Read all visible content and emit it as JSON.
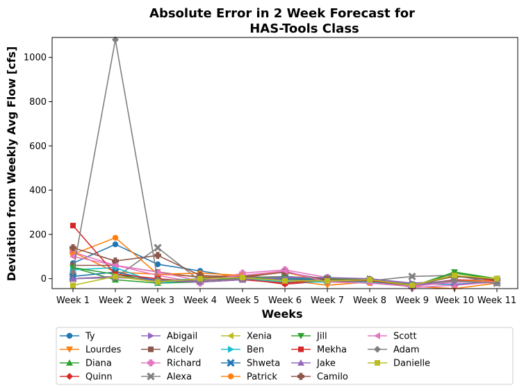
{
  "chart_data": {
    "type": "line",
    "title_lines": [
      "Absolute Error in 2 Week Forecast for",
      "HAS-Tools Class"
    ],
    "xlabel": "Weeks",
    "ylabel": "Deviation from Weekly Avg Flow [cfs]",
    "categories": [
      "Week 1",
      "Week 2",
      "Week 3",
      "Week 4",
      "Week 5",
      "Week 6",
      "Week 7",
      "Week 8",
      "Week 9",
      "Week 10",
      "Week 11"
    ],
    "ylim": [
      -45,
      1090
    ],
    "yticks": [
      0,
      200,
      400,
      600,
      800,
      1000
    ],
    "grid": false,
    "legend_position": "below",
    "series": [
      {
        "name": "Ty",
        "color": "#1f77b4",
        "marker": "circle",
        "values": [
          70,
          155,
          65,
          35,
          5,
          5,
          -5,
          -5,
          -25,
          -25,
          -15
        ]
      },
      {
        "name": "Lourdes",
        "color": "#ff7f0e",
        "marker": "triangle-down",
        "values": [
          120,
          30,
          20,
          10,
          15,
          -5,
          -30,
          -15,
          -35,
          -45,
          -20
        ]
      },
      {
        "name": "Diana",
        "color": "#2ca02c",
        "marker": "triangle-up",
        "values": [
          50,
          -5,
          -20,
          -15,
          -5,
          -5,
          -10,
          -10,
          -35,
          25,
          0
        ]
      },
      {
        "name": "Quinn",
        "color": "#d62728",
        "marker": "diamond",
        "values": [
          0,
          10,
          -5,
          -10,
          0,
          -25,
          -10,
          -15,
          -30,
          -5,
          -10
        ]
      },
      {
        "name": "Abigail",
        "color": "#9467bd",
        "marker": "triangle-right",
        "values": [
          0,
          5,
          -5,
          -10,
          0,
          10,
          0,
          0,
          -20,
          -10,
          -10
        ]
      },
      {
        "name": "Alcely",
        "color": "#8c564b",
        "marker": "square",
        "values": [
          60,
          60,
          30,
          5,
          10,
          30,
          -10,
          -5,
          -25,
          -15,
          -10
        ]
      },
      {
        "name": "Richard",
        "color": "#e377c2",
        "marker": "plus",
        "values": [
          120,
          60,
          15,
          -20,
          25,
          40,
          5,
          -5,
          -40,
          -30,
          -15
        ]
      },
      {
        "name": "Alexa",
        "color": "#7f7f7f",
        "marker": "x",
        "values": [
          0,
          5,
          140,
          -10,
          5,
          10,
          0,
          -10,
          10,
          15,
          -20
        ]
      },
      {
        "name": "Xenia",
        "color": "#bcbd22",
        "marker": "triangle-left",
        "values": [
          0,
          10,
          -15,
          -10,
          -5,
          0,
          -5,
          -10,
          -30,
          10,
          0
        ]
      },
      {
        "name": "Ben",
        "color": "#17becf",
        "marker": "triangle-right",
        "values": [
          40,
          50,
          -20,
          -5,
          0,
          -15,
          -15,
          -15,
          -30,
          -10,
          -10
        ]
      },
      {
        "name": "Shweta",
        "color": "#1f77b4",
        "marker": "x",
        "values": [
          10,
          30,
          -10,
          0,
          0,
          0,
          -5,
          -10,
          -30,
          -15,
          -10
        ]
      },
      {
        "name": "Patrick",
        "color": "#ff7f0e",
        "marker": "circle",
        "values": [
          110,
          185,
          20,
          25,
          15,
          30,
          -15,
          -20,
          -35,
          -10,
          -10
        ]
      },
      {
        "name": "Jill",
        "color": "#2ca02c",
        "marker": "triangle-down",
        "values": [
          50,
          20,
          -15,
          -5,
          0,
          5,
          0,
          -5,
          -35,
          30,
          0
        ]
      },
      {
        "name": "Mekha",
        "color": "#d62728",
        "marker": "square",
        "values": [
          240,
          20,
          0,
          -15,
          -5,
          -20,
          -5,
          -10,
          -30,
          15,
          -10
        ]
      },
      {
        "name": "Jake",
        "color": "#9467bd",
        "marker": "triangle-up",
        "values": [
          0,
          10,
          -10,
          -15,
          -5,
          5,
          5,
          0,
          -30,
          -15,
          -15
        ]
      },
      {
        "name": "Camilo",
        "color": "#8c564b",
        "marker": "plus",
        "values": [
          140,
          80,
          105,
          15,
          5,
          30,
          -5,
          -5,
          -30,
          10,
          -5
        ]
      },
      {
        "name": "Scott",
        "color": "#e377c2",
        "marker": "triangle-left",
        "values": [
          100,
          60,
          30,
          -10,
          15,
          35,
          -15,
          -20,
          -35,
          -15,
          -15
        ]
      },
      {
        "name": "Adam",
        "color": "#7f7f7f",
        "marker": "diamond",
        "values": [
          30,
          1080,
          -5,
          -10,
          0,
          -5,
          -10,
          -5,
          -25,
          -10,
          -20
        ]
      },
      {
        "name": "Danielle",
        "color": "#bcbd22",
        "marker": "square",
        "values": [
          -30,
          10,
          -15,
          0,
          5,
          -10,
          -10,
          -5,
          -30,
          15,
          0
        ]
      }
    ]
  }
}
